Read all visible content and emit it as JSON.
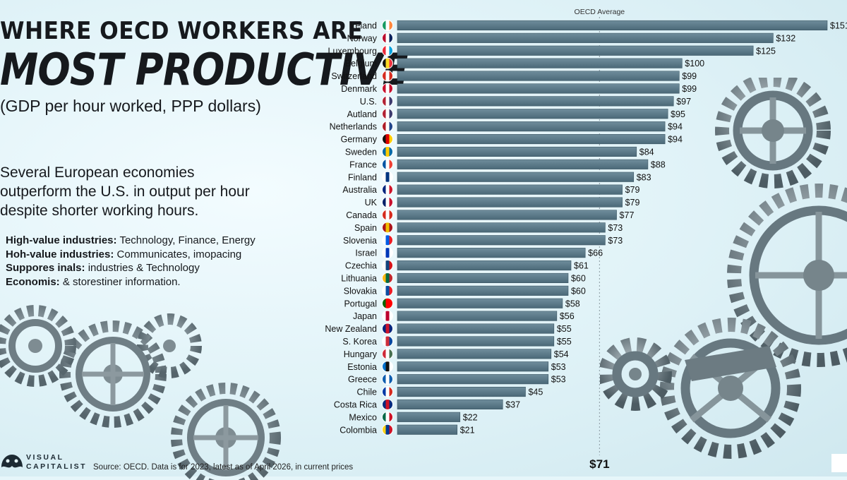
{
  "header": {
    "title_line1": "WHERE OECD WORKERS ARE",
    "title_line2": "MOST PRODUCTIVE",
    "subtitle": "(GDP per hour worked, PPP dollars)"
  },
  "intro": {
    "line1": "Several European economies",
    "line2": "outperform the U.S. in output per hour",
    "line3": "despite shorter working hours."
  },
  "bullets": [
    {
      "key": "High-value industries:",
      "text": "Technology, Finance, Energy"
    },
    {
      "key": "Hoh-value industries:",
      "text": "Communicates, imopacing"
    },
    {
      "key": "Suppores inals:",
      "text": "industries & Technology"
    },
    {
      "key": "Economis:",
      "text": "& storestiner information."
    }
  ],
  "logo": {
    "line1": "VISUAL",
    "line2": "CAPITALIST"
  },
  "source": "Source: OECD. Data is for 2023, latest as of April 2026, in current prices",
  "colors": {
    "bar": "#4b6978",
    "bar_light": "#6f8d9c",
    "reference_line": "#8a9aa2",
    "background": "#e6f6fa"
  },
  "chart_data": {
    "type": "bar",
    "orientation": "horizontal",
    "categories": [
      "Ireland",
      "Norway",
      "Luxembourg",
      "Belgium",
      "Switzerland",
      "Denmark",
      "U.S.",
      "Autland",
      "Netherlands",
      "Germany",
      "Sweden",
      "France",
      "Finland",
      "Australia",
      "UK",
      "Canada",
      "Spain",
      "Slovenia",
      "Israel",
      "Czechia",
      "Lithuania",
      "Slovakia",
      "Portugal",
      "Japan",
      "New Zealand",
      "S. Korea",
      "Hungary",
      "Estonia",
      "Greece",
      "Chile",
      "Costa Rica",
      "Mexico",
      "Colombia"
    ],
    "values": [
      151,
      132,
      125,
      100,
      99,
      99,
      97,
      95,
      94,
      94,
      84,
      88,
      83,
      79,
      79,
      77,
      73,
      73,
      66,
      61,
      60,
      60,
      58,
      56,
      55,
      55,
      54,
      53,
      53,
      45,
      37,
      22,
      21
    ],
    "value_labels": [
      "$151",
      "$132",
      "$125",
      "$100",
      "$99",
      "$99",
      "$97",
      "$95",
      "$94",
      "$94",
      "$84",
      "$88",
      "$83",
      "$79",
      "$79",
      "$77",
      "$73",
      "$73",
      "$66",
      "$61",
      "$60",
      "$60",
      "$58",
      "$56",
      "$55",
      "$55",
      "$54",
      "$53",
      "$53",
      "$45",
      "$37",
      "$22",
      "$21"
    ],
    "flags": [
      "ireland-flag-icon",
      "norway-flag-icon",
      "luxembourg-flag-icon",
      "belgium-flag-icon",
      "switzerland-flag-icon",
      "denmark-flag-icon",
      "us-flag-icon",
      "autland-flag-icon",
      "netherlands-flag-icon",
      "germany-flag-icon",
      "sweden-flag-icon",
      "france-flag-icon",
      "finland-flag-icon",
      "australia-flag-icon",
      "uk-flag-icon",
      "canada-flag-icon",
      "spain-flag-icon",
      "slovenia-flag-icon",
      "israel-flag-icon",
      "czechia-flag-icon",
      "lithuania-flag-icon",
      "slovakia-flag-icon",
      "portugal-flag-icon",
      "japan-flag-icon",
      "new-zealand-flag-icon",
      "s-korea-flag-icon",
      "hungary-flag-icon",
      "estonia-flag-icon",
      "greece-flag-icon",
      "chile-flag-icon",
      "costa-rica-flag-icon",
      "mexico-flag-icon",
      "colombia-flag-icon"
    ],
    "flag_colors": [
      [
        "#169b62",
        "#ffffff",
        "#ff883e"
      ],
      [
        "#ba0c2f",
        "#ffffff",
        "#00205b"
      ],
      [
        "#ed2939",
        "#ffffff",
        "#00a1de"
      ],
      [
        "#111111",
        "#fdda24",
        "#ef3340"
      ],
      [
        "#d52b1e",
        "#ffffff",
        "#d52b1e"
      ],
      [
        "#c8102e",
        "#ffffff",
        "#c8102e"
      ],
      [
        "#b22234",
        "#ffffff",
        "#3c3b6e"
      ],
      [
        "#b22234",
        "#ffffff",
        "#3c3b6e"
      ],
      [
        "#ae1c28",
        "#ffffff",
        "#21468b"
      ],
      [
        "#111111",
        "#dd0000",
        "#ffce00"
      ],
      [
        "#006aa7",
        "#fecc00",
        "#006aa7"
      ],
      [
        "#0055a4",
        "#ffffff",
        "#ef4135"
      ],
      [
        "#ffffff",
        "#003580",
        "#ffffff"
      ],
      [
        "#00247d",
        "#ffffff",
        "#cf142b"
      ],
      [
        "#012169",
        "#ffffff",
        "#c8102e"
      ],
      [
        "#d52b1e",
        "#ffffff",
        "#d52b1e"
      ],
      [
        "#aa151b",
        "#f1bf00",
        "#aa151b"
      ],
      [
        "#ffffff",
        "#005ce5",
        "#ed1c24"
      ],
      [
        "#ffffff",
        "#0038b8",
        "#ffffff"
      ],
      [
        "#ffffff",
        "#11457e",
        "#d7141a"
      ],
      [
        "#fdb913",
        "#006a44",
        "#c1272d"
      ],
      [
        "#ffffff",
        "#0b4ea2",
        "#ee1c25"
      ],
      [
        "#006600",
        "#ff0000",
        "#ff0000"
      ],
      [
        "#ffffff",
        "#bc002d",
        "#ffffff"
      ],
      [
        "#00247d",
        "#cc142b",
        "#00247d"
      ],
      [
        "#ffffff",
        "#cd2e3a",
        "#0047a0"
      ],
      [
        "#ce2939",
        "#ffffff",
        "#477050"
      ],
      [
        "#0072ce",
        "#111111",
        "#ffffff"
      ],
      [
        "#0d5eaf",
        "#ffffff",
        "#0d5eaf"
      ],
      [
        "#0039a6",
        "#ffffff",
        "#d52b1e"
      ],
      [
        "#002b7f",
        "#ce1126",
        "#002b7f"
      ],
      [
        "#006847",
        "#ffffff",
        "#ce1126"
      ],
      [
        "#fcd116",
        "#003893",
        "#ce1126"
      ]
    ],
    "xlim": [
      0,
      151
    ],
    "reference": {
      "label": "OECD Average",
      "value": 71,
      "value_label": "$71"
    },
    "grid": false,
    "legend": "none"
  }
}
